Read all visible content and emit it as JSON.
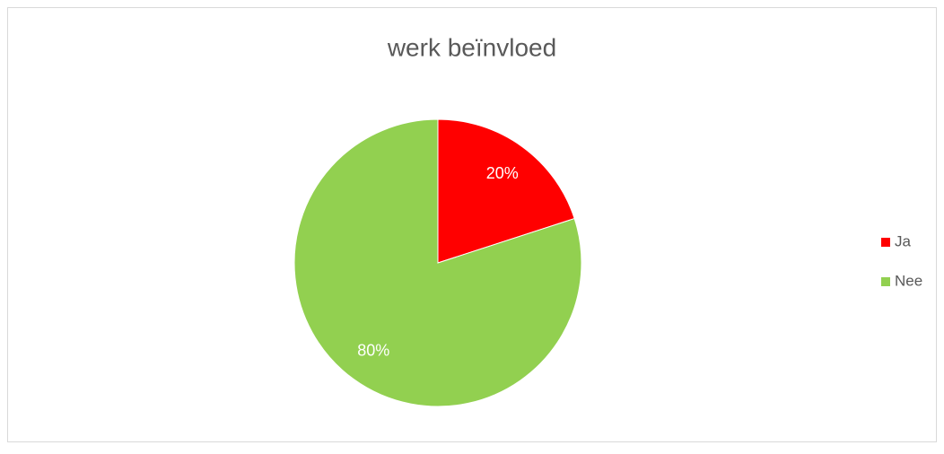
{
  "chart_data": {
    "type": "pie",
    "title": "werk beïnvloed",
    "categories": [
      "Ja",
      "Nee"
    ],
    "values": [
      20,
      80
    ],
    "value_labels": [
      "20%",
      "80%"
    ],
    "colors": [
      "#ff0000",
      "#92d050"
    ],
    "legend": "right"
  }
}
